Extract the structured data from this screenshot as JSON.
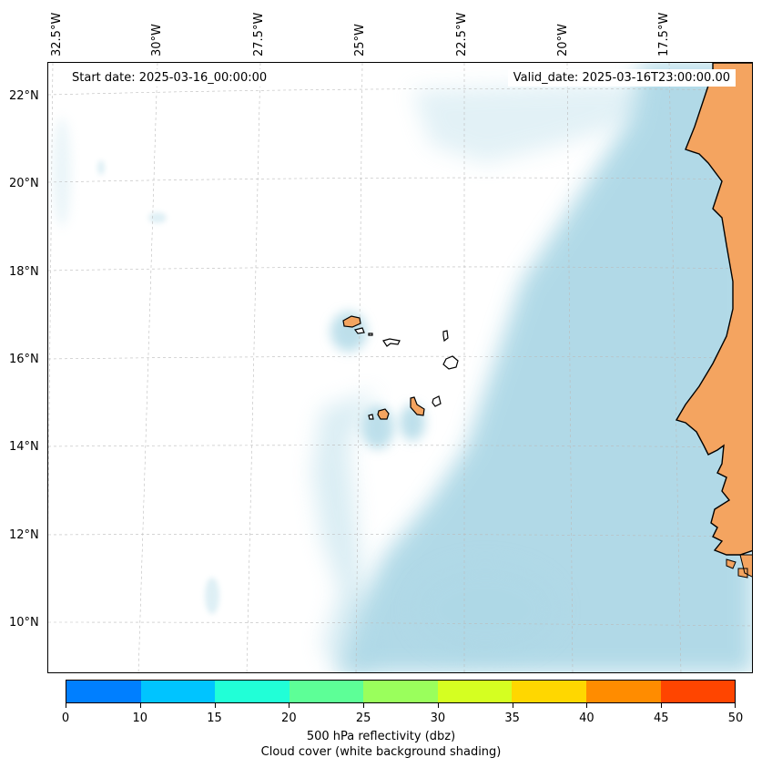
{
  "map": {
    "start_date": "Start date: 2025-03-16_00:00:00",
    "valid_date": "Valid_date: 2025-03-16T23:00:00.00",
    "lon_labels": [
      "32.5°W",
      "30°W",
      "27.5°W",
      "25°W",
      "22.5°W",
      "20°W",
      "17.5°W"
    ],
    "lat_labels": [
      "22°N",
      "20°N",
      "18°N",
      "16°N",
      "14°N",
      "12°N",
      "10°N"
    ],
    "land_color": "#f4a460",
    "cloud_color": "#add8e6"
  },
  "colorbar": {
    "ticks": [
      "0",
      "10",
      "15",
      "20",
      "25",
      "30",
      "35",
      "40",
      "45",
      "50"
    ],
    "colors": [
      "#007fff",
      "#00c4ff",
      "#21ffd7",
      "#5dff97",
      "#9aff5c",
      "#d5ff21",
      "#ffd700",
      "#ff8c00",
      "#ff4500"
    ],
    "label_line1": "500 hPa reflectivity (dbz)",
    "label_line2": "Cloud cover (white background shading)"
  }
}
